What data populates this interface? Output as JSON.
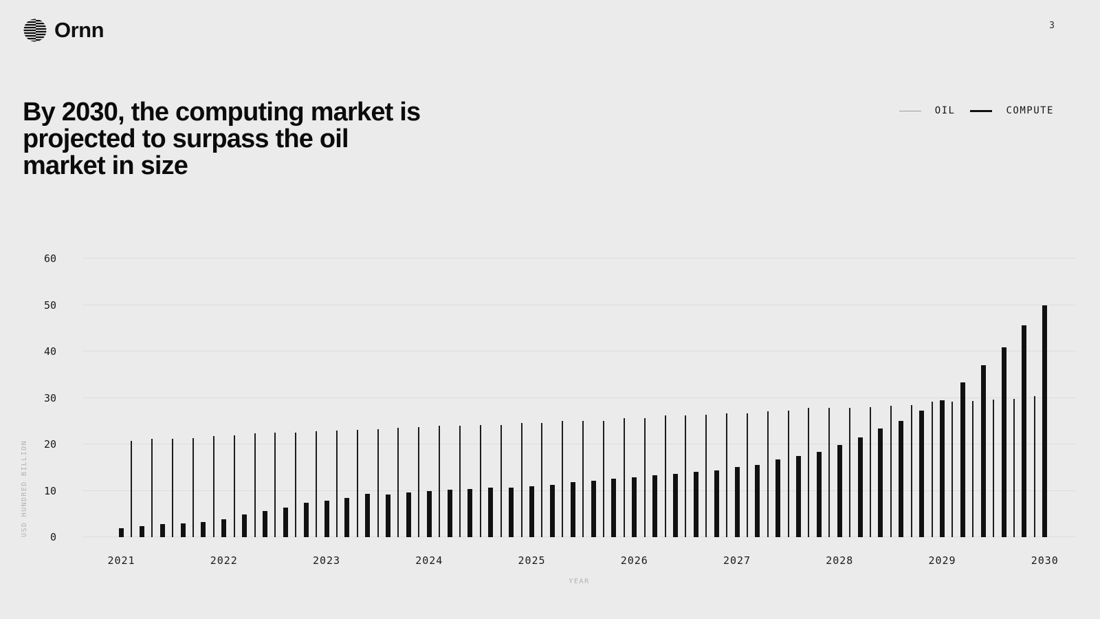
{
  "page": {
    "number": "3",
    "background": "#ebebeb"
  },
  "brand": {
    "name": "Ornn"
  },
  "headline": {
    "lines": [
      "By 2030, the computing market is",
      "projected to surpass the oil",
      "market in size"
    ]
  },
  "legend": {
    "items": [
      {
        "label": "OIL",
        "swatch": "thin-line",
        "color": "#9b9b9b"
      },
      {
        "label": "COMPUTE",
        "swatch": "thick-line",
        "color": "#111111"
      }
    ]
  },
  "chart_data": {
    "type": "bar",
    "title": "By 2030, the computing market is projected to surpass the oil market in size",
    "xlabel": "YEAR",
    "ylabel": "USD HUNDRED BILLION",
    "ylim": [
      0,
      60
    ],
    "yticks": [
      0,
      10,
      20,
      30,
      40,
      50,
      60
    ],
    "x_tick_labels": [
      "2021",
      "2022",
      "2023",
      "2024",
      "2025",
      "2026",
      "2027",
      "2028",
      "2029",
      "2030"
    ],
    "points_per_year": 5,
    "grid": "horizontal",
    "legend_position": "top-right",
    "series": [
      {
        "name": "OIL",
        "style": "thin",
        "color": "#1c1c1c",
        "x_offset_steps": 0.5,
        "values": [
          20.7,
          21.2,
          21.2,
          21.3,
          21.8,
          21.9,
          22.4,
          22.5,
          22.5,
          22.8,
          22.9,
          23.1,
          23.2,
          23.6,
          23.7,
          24.0,
          24.0,
          24.1,
          24.1,
          24.6,
          24.6,
          25.0,
          25.0,
          25.1,
          25.7,
          25.7,
          26.2,
          26.2,
          26.3,
          26.7,
          26.7,
          27.1,
          27.2,
          27.9,
          27.9,
          27.9,
          28.0,
          28.3,
          28.4,
          29.2,
          29.2,
          29.3,
          29.7,
          29.8,
          30.3
        ]
      },
      {
        "name": "COMPUTE",
        "style": "thick",
        "color": "#111111",
        "x_offset_steps": 0,
        "values": [
          2.0,
          2.3,
          2.8,
          2.9,
          3.2,
          3.8,
          4.9,
          5.7,
          6.4,
          7.4,
          7.9,
          8.4,
          9.3,
          9.2,
          9.7,
          10.0,
          10.2,
          10.3,
          10.6,
          10.6,
          10.9,
          11.3,
          11.8,
          12.2,
          12.6,
          12.9,
          13.4,
          13.6,
          14.1,
          14.3,
          15.1,
          15.6,
          16.7,
          17.5,
          18.3,
          19.8,
          21.5,
          23.4,
          25.1,
          27.2,
          29.5,
          33.3,
          37.1,
          40.9,
          45.6,
          50.0
        ]
      }
    ]
  }
}
